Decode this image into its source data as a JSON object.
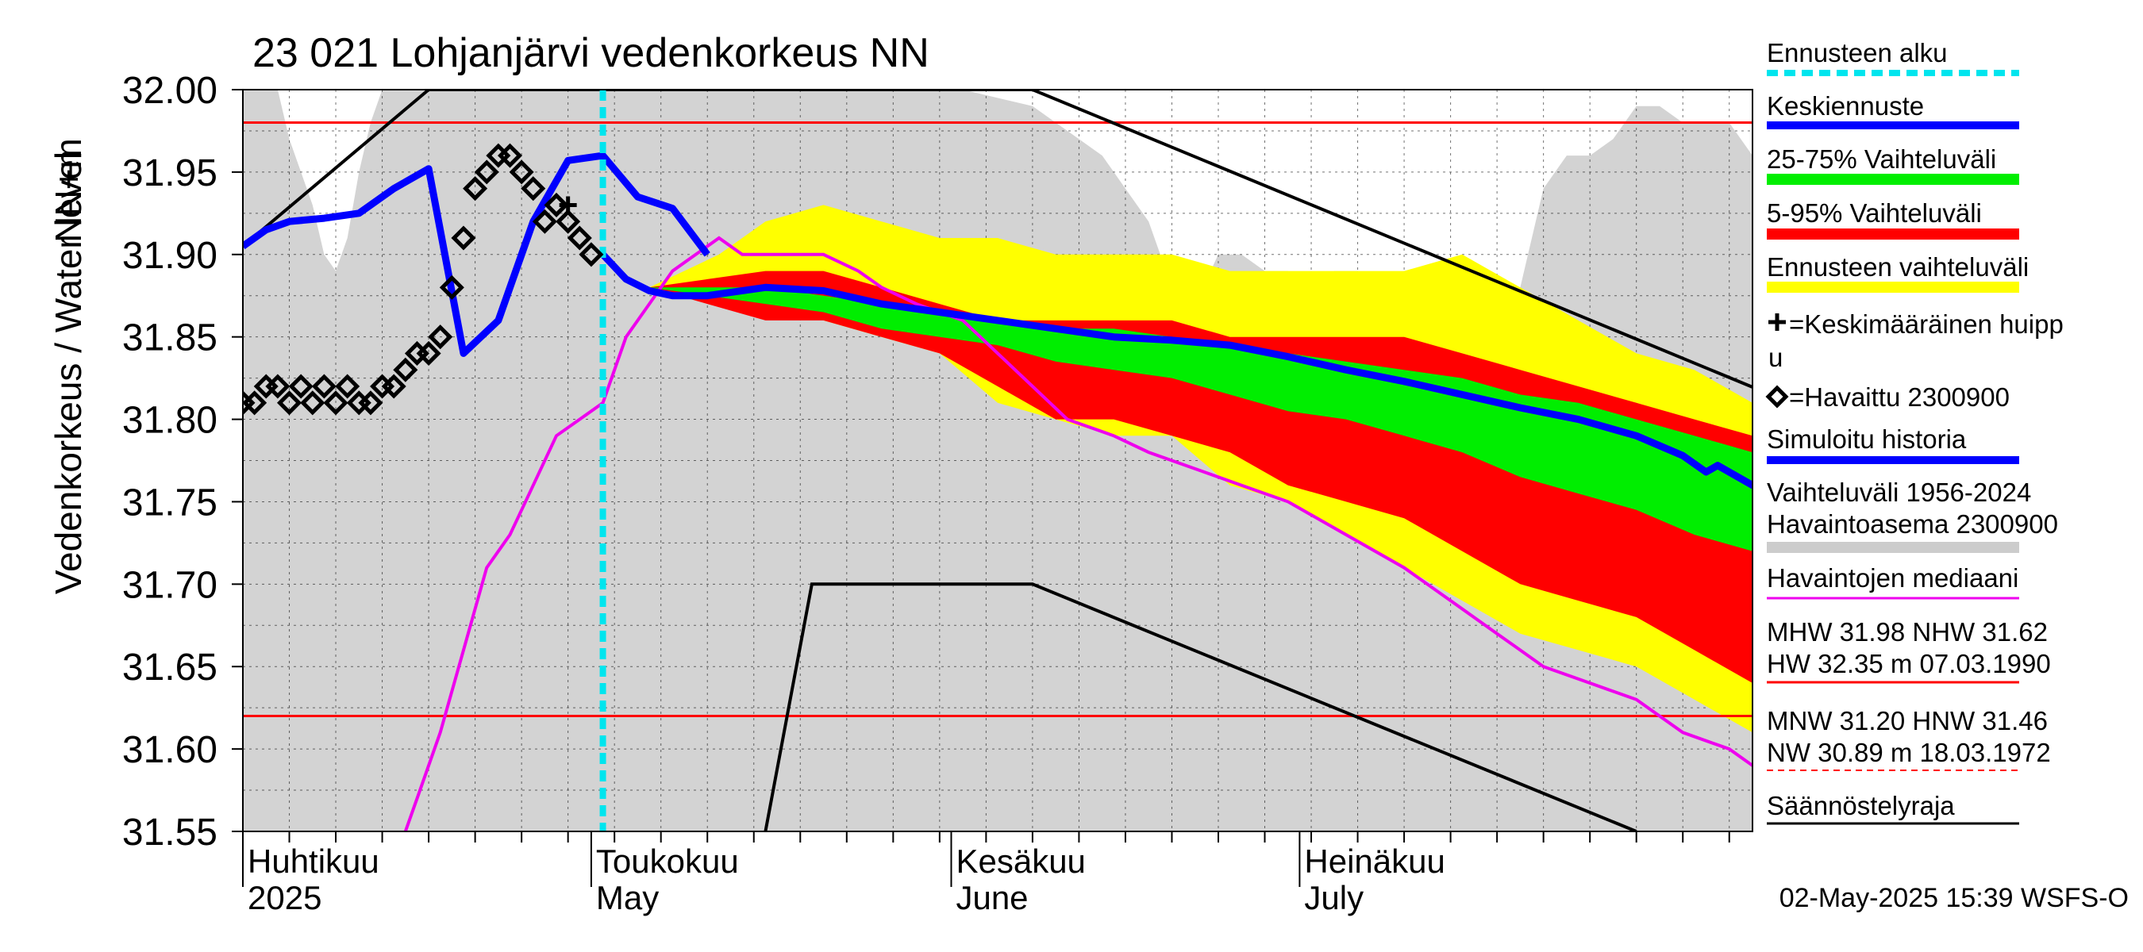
{
  "chart_data": {
    "type": "line",
    "title": "23 021 Lohjanjärvi vedenkorkeus NN",
    "ylabel_main": "Vedenkorkeus / Water level",
    "ylabel_unit": "NN+m",
    "y_ticks": [
      "32.00",
      "31.95",
      "31.90",
      "31.85",
      "31.80",
      "31.75",
      "31.70",
      "31.65",
      "31.60",
      "31.55"
    ],
    "ylim": [
      31.55,
      32.0
    ],
    "x_start": "2025-04-01",
    "x_end": "2025-08-09",
    "forecast_start": "2025-05-02",
    "month_labels": [
      {
        "fi": "Huhtikuu",
        "en": "2025",
        "date": "2025-04-01"
      },
      {
        "fi": "Toukokuu",
        "en": "May",
        "date": "2025-05-01"
      },
      {
        "fi": "Kesäkuu",
        "en": "June",
        "date": "2025-06-01"
      },
      {
        "fi": "Heinäkuu",
        "en": "July",
        "date": "2025-07-01"
      }
    ],
    "reference_lines": [
      {
        "label": "MHW",
        "value": 31.98
      },
      {
        "label": "NHW",
        "value": 31.62
      }
    ],
    "legend": [
      {
        "id": "forecast_start",
        "label": "Ennusteen alku",
        "color": "#00e5ee",
        "style": "dashed"
      },
      {
        "id": "mean_forecast",
        "label": "Keskiennuste",
        "color": "#0000ff",
        "style": "thick"
      },
      {
        "id": "p25_75",
        "label": "25-75% Vaihteluväli",
        "color": "#00ee00",
        "style": "band"
      },
      {
        "id": "p5_95",
        "label": "5-95% Vaihteluväli",
        "color": "#ff0000",
        "style": "band"
      },
      {
        "id": "forecast_range",
        "label": "Ennusteen vaihteluväli",
        "color": "#ffff00",
        "style": "band"
      },
      {
        "id": "mean_peak",
        "label_line1": "=Keskimääräinen huipp",
        "label_line2": "u",
        "color": "#000000",
        "style": "plus"
      },
      {
        "id": "observed",
        "label": "=Havaittu 2300900",
        "color": "#000000",
        "style": "diamond"
      },
      {
        "id": "simulated",
        "label": "Simuloitu historia",
        "color": "#0000ff",
        "style": "thick"
      },
      {
        "id": "hist_range",
        "label_line1": "Vaihteluväli 1956-2024",
        "label_line2": " Havaintoasema 2300900",
        "color": "#cccccc",
        "style": "band"
      },
      {
        "id": "median",
        "label": "Havaintojen mediaani",
        "color": "#ee00ee",
        "style": "line"
      },
      {
        "id": "stats_hw",
        "label_line1": "MHW  31.98 NHW  31.62",
        "label_line2": "HW  32.35 m 07.03.1990",
        "color": "#ff0000",
        "style": "line"
      },
      {
        "id": "stats_nw",
        "label_line1": "MNW  31.20 HNW  31.46",
        "label_line2": "NW  30.89 m 18.03.1972",
        "color": "#ff0000",
        "style": "dashed-thin"
      },
      {
        "id": "regulation",
        "label": "Säännöstelyraja",
        "color": "#000000",
        "style": "line"
      }
    ],
    "timestamp": "02-May-2025 15:39 WSFS-O",
    "series": {
      "hist_max": [
        [
          0,
          32.0
        ],
        [
          3,
          32.0
        ],
        [
          4,
          31.97
        ],
        [
          5,
          31.95
        ],
        [
          6,
          31.93
        ],
        [
          7,
          31.9
        ],
        [
          8,
          31.89
        ],
        [
          9,
          31.91
        ],
        [
          10,
          31.95
        ],
        [
          11,
          31.98
        ],
        [
          12,
          32.0
        ],
        [
          62,
          32.0
        ],
        [
          68,
          31.99
        ],
        [
          70,
          31.98
        ],
        [
          72,
          31.97
        ],
        [
          74,
          31.96
        ],
        [
          76,
          31.94
        ],
        [
          78,
          31.92
        ],
        [
          80,
          31.88
        ],
        [
          82,
          31.87
        ],
        [
          84,
          31.9
        ],
        [
          86,
          31.9
        ],
        [
          88,
          31.89
        ],
        [
          90,
          31.89
        ],
        [
          92,
          31.88
        ],
        [
          94,
          31.89
        ],
        [
          96,
          31.89
        ],
        [
          98,
          31.88
        ],
        [
          100,
          31.89
        ],
        [
          102,
          31.88
        ],
        [
          104,
          31.87
        ],
        [
          106,
          31.88
        ],
        [
          108,
          31.86
        ],
        [
          110,
          31.88
        ],
        [
          112,
          31.94
        ],
        [
          114,
          31.96
        ],
        [
          116,
          31.96
        ],
        [
          118,
          31.97
        ],
        [
          120,
          31.99
        ],
        [
          122,
          31.99
        ],
        [
          124,
          31.98
        ],
        [
          126,
          31.98
        ],
        [
          128,
          31.98
        ],
        [
          130,
          31.96
        ],
        [
          132,
          31.93
        ],
        [
          134,
          31.92
        ],
        [
          135,
          31.92
        ]
      ],
      "yellow_upper": [
        [
          31,
          31.9
        ],
        [
          35,
          31.88
        ],
        [
          38,
          31.89
        ],
        [
          41,
          31.9
        ],
        [
          45,
          31.92
        ],
        [
          50,
          31.93
        ],
        [
          55,
          31.92
        ],
        [
          60,
          31.91
        ],
        [
          65,
          31.91
        ],
        [
          70,
          31.9
        ],
        [
          75,
          31.9
        ],
        [
          80,
          31.9
        ],
        [
          85,
          31.89
        ],
        [
          90,
          31.89
        ],
        [
          95,
          31.89
        ],
        [
          100,
          31.89
        ],
        [
          105,
          31.9
        ],
        [
          110,
          31.88
        ],
        [
          115,
          31.86
        ],
        [
          120,
          31.84
        ],
        [
          125,
          31.83
        ],
        [
          130,
          31.81
        ],
        [
          135,
          31.78
        ]
      ],
      "yellow_lower": [
        [
          31,
          31.9
        ],
        [
          35,
          31.88
        ],
        [
          38,
          31.875
        ],
        [
          45,
          31.87
        ],
        [
          55,
          31.85
        ],
        [
          60,
          31.84
        ],
        [
          65,
          31.81
        ],
        [
          70,
          31.8
        ],
        [
          75,
          31.79
        ],
        [
          80,
          31.79
        ],
        [
          85,
          31.76
        ],
        [
          90,
          31.75
        ],
        [
          95,
          31.73
        ],
        [
          100,
          31.71
        ],
        [
          105,
          31.69
        ],
        [
          110,
          31.67
        ],
        [
          115,
          31.66
        ],
        [
          120,
          31.65
        ],
        [
          125,
          31.63
        ],
        [
          130,
          31.61
        ],
        [
          135,
          31.59
        ]
      ],
      "red_upper": [
        [
          31,
          31.9
        ],
        [
          35,
          31.88
        ],
        [
          40,
          31.885
        ],
        [
          45,
          31.89
        ],
        [
          50,
          31.89
        ],
        [
          55,
          31.88
        ],
        [
          60,
          31.87
        ],
        [
          65,
          31.86
        ],
        [
          70,
          31.86
        ],
        [
          75,
          31.86
        ],
        [
          80,
          31.86
        ],
        [
          85,
          31.85
        ],
        [
          90,
          31.85
        ],
        [
          95,
          31.85
        ],
        [
          100,
          31.85
        ],
        [
          105,
          31.84
        ],
        [
          110,
          31.83
        ],
        [
          115,
          31.82
        ],
        [
          120,
          31.81
        ],
        [
          125,
          31.8
        ],
        [
          130,
          31.79
        ],
        [
          135,
          31.77
        ]
      ],
      "red_lower": [
        [
          31,
          31.9
        ],
        [
          35,
          31.88
        ],
        [
          40,
          31.87
        ],
        [
          45,
          31.86
        ],
        [
          50,
          31.86
        ],
        [
          55,
          31.85
        ],
        [
          60,
          31.84
        ],
        [
          65,
          31.82
        ],
        [
          70,
          31.8
        ],
        [
          75,
          31.8
        ],
        [
          80,
          31.79
        ],
        [
          85,
          31.78
        ],
        [
          90,
          31.76
        ],
        [
          95,
          31.75
        ],
        [
          100,
          31.74
        ],
        [
          105,
          31.72
        ],
        [
          110,
          31.7
        ],
        [
          115,
          31.69
        ],
        [
          120,
          31.68
        ],
        [
          125,
          31.66
        ],
        [
          130,
          31.64
        ],
        [
          135,
          31.61
        ]
      ],
      "green_upper": [
        [
          31,
          31.9
        ],
        [
          35,
          31.88
        ],
        [
          40,
          31.88
        ],
        [
          45,
          31.88
        ],
        [
          50,
          31.875
        ],
        [
          55,
          31.87
        ],
        [
          60,
          31.865
        ],
        [
          65,
          31.86
        ],
        [
          70,
          31.855
        ],
        [
          75,
          31.855
        ],
        [
          80,
          31.85
        ],
        [
          85,
          31.845
        ],
        [
          90,
          31.84
        ],
        [
          95,
          31.835
        ],
        [
          100,
          31.83
        ],
        [
          105,
          31.825
        ],
        [
          110,
          31.815
        ],
        [
          115,
          31.81
        ],
        [
          120,
          31.8
        ],
        [
          125,
          31.79
        ],
        [
          130,
          31.78
        ],
        [
          135,
          31.76
        ]
      ],
      "green_lower": [
        [
          31,
          31.9
        ],
        [
          35,
          31.88
        ],
        [
          40,
          31.875
        ],
        [
          45,
          31.87
        ],
        [
          50,
          31.865
        ],
        [
          55,
          31.855
        ],
        [
          60,
          31.85
        ],
        [
          65,
          31.845
        ],
        [
          70,
          31.835
        ],
        [
          75,
          31.83
        ],
        [
          80,
          31.825
        ],
        [
          85,
          31.815
        ],
        [
          90,
          31.805
        ],
        [
          95,
          31.8
        ],
        [
          100,
          31.79
        ],
        [
          105,
          31.78
        ],
        [
          110,
          31.765
        ],
        [
          115,
          31.755
        ],
        [
          120,
          31.745
        ],
        [
          125,
          31.73
        ],
        [
          130,
          31.72
        ],
        [
          135,
          31.7
        ]
      ],
      "mean_forecast": [
        [
          31,
          31.9
        ],
        [
          33,
          31.885
        ],
        [
          35,
          31.878
        ],
        [
          37,
          31.875
        ],
        [
          40,
          31.875
        ],
        [
          45,
          31.88
        ],
        [
          50,
          31.878
        ],
        [
          55,
          31.87
        ],
        [
          60,
          31.865
        ],
        [
          65,
          31.86
        ],
        [
          70,
          31.855
        ],
        [
          75,
          31.85
        ],
        [
          80,
          31.848
        ],
        [
          85,
          31.845
        ],
        [
          90,
          31.838
        ],
        [
          95,
          31.83
        ],
        [
          100,
          31.823
        ],
        [
          105,
          31.815
        ],
        [
          110,
          31.807
        ],
        [
          115,
          31.8
        ],
        [
          120,
          31.79
        ],
        [
          124,
          31.778
        ],
        [
          126,
          31.768
        ],
        [
          127,
          31.772
        ],
        [
          130,
          31.76
        ],
        [
          135,
          31.75
        ]
      ],
      "simulated": [
        [
          0,
          31.905
        ],
        [
          2,
          31.915
        ],
        [
          4,
          31.92
        ],
        [
          7,
          31.922
        ],
        [
          10,
          31.925
        ],
        [
          13,
          31.94
        ],
        [
          16,
          31.952
        ],
        [
          19,
          31.84
        ],
        [
          22,
          31.86
        ],
        [
          25,
          31.92
        ],
        [
          28,
          31.957
        ],
        [
          31,
          31.96
        ],
        [
          34,
          31.935
        ],
        [
          37,
          31.928
        ],
        [
          40,
          31.9
        ]
      ],
      "median": [
        [
          14,
          31.55
        ],
        [
          15,
          31.57
        ],
        [
          17,
          31.61
        ],
        [
          19,
          31.66
        ],
        [
          21,
          31.71
        ],
        [
          23,
          31.73
        ],
        [
          25,
          31.76
        ],
        [
          27,
          31.79
        ],
        [
          29,
          31.8
        ],
        [
          31,
          31.81
        ],
        [
          33,
          31.85
        ],
        [
          35,
          31.87
        ],
        [
          37,
          31.89
        ],
        [
          39,
          31.9
        ],
        [
          41,
          31.91
        ],
        [
          43,
          31.9
        ],
        [
          50,
          31.9
        ],
        [
          53,
          31.89
        ],
        [
          55,
          31.88
        ],
        [
          58,
          31.87
        ],
        [
          62,
          31.86
        ],
        [
          65,
          31.84
        ],
        [
          68,
          31.82
        ],
        [
          71,
          31.8
        ],
        [
          75,
          31.79
        ],
        [
          78,
          31.78
        ],
        [
          82,
          31.77
        ],
        [
          86,
          31.76
        ],
        [
          90,
          31.75
        ],
        [
          95,
          31.73
        ],
        [
          100,
          31.71
        ],
        [
          104,
          31.69
        ],
        [
          108,
          31.67
        ],
        [
          112,
          31.65
        ],
        [
          116,
          31.64
        ],
        [
          120,
          31.63
        ],
        [
          124,
          31.61
        ],
        [
          128,
          31.6
        ],
        [
          132,
          31.58
        ],
        [
          135,
          31.58
        ]
      ],
      "observed": [
        [
          0,
          31.81
        ],
        [
          1,
          31.81
        ],
        [
          2,
          31.82
        ],
        [
          3,
          31.82
        ],
        [
          4,
          31.81
        ],
        [
          5,
          31.82
        ],
        [
          6,
          31.81
        ],
        [
          7,
          31.82
        ],
        [
          8,
          31.81
        ],
        [
          9,
          31.82
        ],
        [
          10,
          31.81
        ],
        [
          11,
          31.81
        ],
        [
          12,
          31.82
        ],
        [
          13,
          31.82
        ],
        [
          14,
          31.83
        ],
        [
          15,
          31.84
        ],
        [
          16,
          31.84
        ],
        [
          17,
          31.85
        ],
        [
          18,
          31.88
        ],
        [
          19,
          31.91
        ],
        [
          20,
          31.94
        ],
        [
          21,
          31.95
        ],
        [
          22,
          31.96
        ],
        [
          23,
          31.96
        ],
        [
          24,
          31.95
        ],
        [
          25,
          31.94
        ],
        [
          26,
          31.92
        ],
        [
          27,
          31.93
        ],
        [
          28,
          31.92
        ],
        [
          29,
          31.91
        ],
        [
          30,
          31.9
        ]
      ],
      "mean_peak": [
        [
          28,
          31.93
        ]
      ],
      "regulation_upper": [
        [
          0,
          31.905
        ],
        [
          16,
          32.0
        ],
        [
          68,
          32.0
        ],
        [
          135,
          31.805
        ]
      ],
      "regulation_lower": [
        [
          45,
          31.55
        ],
        [
          49,
          31.7
        ],
        [
          68,
          31.7
        ],
        [
          120,
          31.55
        ]
      ]
    }
  }
}
